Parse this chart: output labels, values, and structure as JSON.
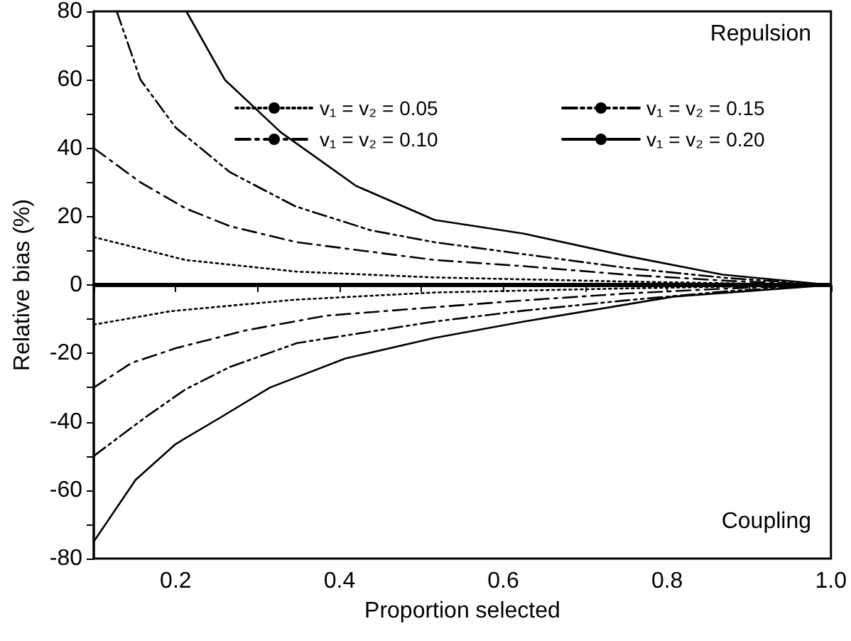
{
  "chart_data": {
    "type": "line",
    "xlabel": "Proportion selected",
    "ylabel": "Relative bias (%)",
    "annotations": [
      "Repulsion",
      "Coupling"
    ],
    "xlim": [
      0.1,
      1.0
    ],
    "xticks": [
      {
        "value": 0.1,
        "label": null
      },
      0.2,
      {
        "value": 0.3,
        "label": null
      },
      0.4,
      {
        "value": 0.5,
        "label": null
      },
      0.6,
      {
        "value": 0.7,
        "label": null
      },
      0.8,
      {
        "value": 0.9,
        "label": null
      },
      {
        "value": 1,
        "label": "1.0"
      }
    ],
    "ylim": [
      -80,
      80
    ],
    "yticks": [
      -80,
      {
        "value": -70,
        "label": null
      },
      -60,
      {
        "value": -50,
        "label": null
      },
      -40,
      {
        "value": -30,
        "label": null
      },
      -20,
      {
        "value": -10,
        "label": null
      },
      0,
      {
        "value": 10,
        "label": null
      },
      20,
      {
        "value": 30,
        "label": null
      },
      40,
      {
        "value": 50,
        "label": null
      },
      60,
      {
        "value": 70,
        "label": null
      },
      80
    ],
    "grid": false,
    "legend": "top right",
    "marker": "none",
    "ref_lines": [
      {
        "axis": "y",
        "value": 0,
        "color": "#000000"
      }
    ],
    "series": [
      {
        "name": "v₁ = v₂ = 0.05",
        "color": "#000000",
        "line_style": "dotted",
        "x": [
          0.1,
          0.212,
          0.348,
          0.516,
          0.75,
          1.0
        ],
        "values": [
          14,
          7.3,
          3.9,
          2.2,
          1,
          0
        ]
      },
      {
        "name": "v₁ = v₂ = 0.10",
        "color": "#000000",
        "line_style": "dashdot",
        "x": [
          0.1,
          0.157,
          0.212,
          0.266,
          0.348,
          0.516,
          0.625,
          0.75,
          0.875,
          1.0
        ],
        "values": [
          40,
          30,
          22.4,
          17.2,
          12.5,
          7.3,
          5.5,
          3,
          1.2,
          0
        ]
      },
      {
        "name": "v₁ = v₂ = 0.15",
        "color": "#000000",
        "line_style": "dashdotdot",
        "x": [
          0.128,
          0.157,
          0.2,
          0.266,
          0.346,
          0.438,
          0.516,
          0.625,
          0.75,
          0.875,
          1.0
        ],
        "values": [
          80,
          60,
          46,
          33,
          23,
          16,
          12.5,
          9,
          5,
          2,
          0
        ]
      },
      {
        "name": "v₁ = v₂ = 0.20",
        "color": "#000000",
        "line_style": "solid",
        "x": [
          0.213,
          0.26,
          0.328,
          0.42,
          0.516,
          0.625,
          0.748,
          0.868,
          1.0
        ],
        "values": [
          80,
          60,
          44.7,
          29,
          19,
          15,
          8.6,
          3,
          0
        ]
      },
      {
        "color": "#000000",
        "line_style": "dotted",
        "x": [
          0.1,
          0.193,
          0.346,
          0.516,
          0.75,
          1.0
        ],
        "values": [
          -11.6,
          -7.7,
          -4.3,
          -2.2,
          -1,
          0
        ]
      },
      {
        "color": "#000000",
        "line_style": "dashdot",
        "x": [
          0.1,
          0.146,
          0.2,
          0.285,
          0.383,
          0.516,
          0.625,
          0.75,
          0.875,
          1.0
        ],
        "values": [
          -30,
          -22.8,
          -18.5,
          -13.3,
          -9,
          -6.5,
          -4.5,
          -2.5,
          -1,
          0
        ]
      },
      {
        "color": "#000000",
        "line_style": "dashdotdot",
        "x": [
          0.1,
          0.163,
          0.212,
          0.266,
          0.348,
          0.516,
          0.625,
          0.75,
          0.875,
          1.0
        ],
        "values": [
          -50,
          -38.7,
          -30.5,
          -24,
          -17,
          -10.7,
          -7.5,
          -4.5,
          -1.8,
          0
        ]
      },
      {
        "color": "#000000",
        "line_style": "solid",
        "x": [
          0.1,
          0.151,
          0.2,
          0.255,
          0.315,
          0.407,
          0.516,
          0.625,
          0.808,
          1.0
        ],
        "values": [
          -75,
          -57,
          -46.5,
          -38.7,
          -30,
          -21.5,
          -15.5,
          -10.7,
          -3.4,
          0
        ]
      }
    ]
  }
}
